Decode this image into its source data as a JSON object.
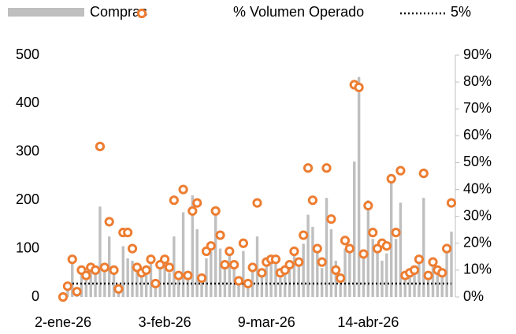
{
  "chart_data": {
    "type": "bar_line",
    "categories": [
      "2-ene-26",
      null,
      null,
      null,
      null,
      null,
      null,
      null,
      null,
      null,
      null,
      null,
      null,
      null,
      null,
      null,
      null,
      null,
      null,
      null,
      null,
      null,
      "3-feb-26",
      null,
      null,
      null,
      null,
      null,
      null,
      null,
      null,
      null,
      null,
      null,
      null,
      null,
      null,
      null,
      null,
      null,
      null,
      null,
      null,
      null,
      "9-mar-26",
      null,
      null,
      null,
      null,
      null,
      null,
      null,
      null,
      null,
      null,
      null,
      null,
      null,
      null,
      null,
      null,
      null,
      null,
      null,
      null,
      null,
      "14-abr-26",
      null,
      null,
      null,
      null,
      null,
      null,
      null,
      null,
      null,
      null,
      null,
      null,
      null,
      null,
      null,
      null,
      null,
      null
    ],
    "series": [
      {
        "name": "Compras",
        "color": "#bfbfbf",
        "axis": "y",
        "values": [
          10,
          25,
          80,
          15,
          50,
          40,
          60,
          55,
          187,
          55,
          125,
          50,
          20,
          105,
          80,
          75,
          55,
          45,
          50,
          70,
          30,
          60,
          70,
          50,
          125,
          45,
          175,
          45,
          210,
          140,
          40,
          80,
          95,
          175,
          100,
          60,
          85,
          60,
          30,
          95,
          30,
          60,
          125,
          45,
          70,
          70,
          75,
          45,
          55,
          60,
          90,
          70,
          110,
          170,
          145,
          95,
          60,
          205,
          140,
          75,
          40,
          100,
          95,
          280,
          455,
          85,
          200,
          120,
          95,
          75,
          90,
          240,
          120,
          195,
          40,
          50,
          55,
          70,
          205,
          40,
          70,
          50,
          45,
          95,
          135
        ]
      },
      {
        "name": "% Volumen Operado",
        "color": "#ed7d31",
        "axis": "y2",
        "values": [
          0,
          4,
          14,
          2,
          10,
          8,
          11,
          10,
          56,
          11,
          28,
          10,
          3,
          24,
          24,
          18,
          11,
          9,
          10,
          14,
          5,
          12,
          14,
          11,
          36,
          8,
          40,
          8,
          32,
          35,
          7,
          17,
          19,
          32,
          23,
          12,
          17,
          12,
          6,
          20,
          5,
          11,
          35,
          9,
          13,
          14,
          14,
          9,
          10,
          12,
          17,
          13,
          23,
          48,
          36,
          18,
          13,
          48,
          29,
          10,
          7,
          21,
          18,
          79,
          78,
          16,
          34,
          24,
          18,
          20,
          19,
          44,
          24,
          47,
          8,
          9,
          10,
          14,
          46,
          8,
          13,
          10,
          9,
          18,
          35
        ]
      }
    ],
    "reference_line": {
      "name": "5%",
      "value": 5,
      "axis": "y2",
      "color": "#000000"
    },
    "ylim": [
      0,
      500
    ],
    "yticks": [
      0,
      100,
      200,
      300,
      400,
      500
    ],
    "y2lim": [
      0,
      90
    ],
    "y2ticks": [
      {
        "value": 0,
        "label": "0%"
      },
      {
        "value": 10,
        "label": "10%"
      },
      {
        "value": 20,
        "label": "20%"
      },
      {
        "value": 30,
        "label": "30%"
      },
      {
        "value": 40,
        "label": "40%"
      },
      {
        "value": 50,
        "label": "50%"
      },
      {
        "value": 60,
        "label": "60%"
      },
      {
        "value": 70,
        "label": "70%"
      },
      {
        "value": 80,
        "label": "80%"
      },
      {
        "value": 90,
        "label": "90%"
      }
    ]
  }
}
